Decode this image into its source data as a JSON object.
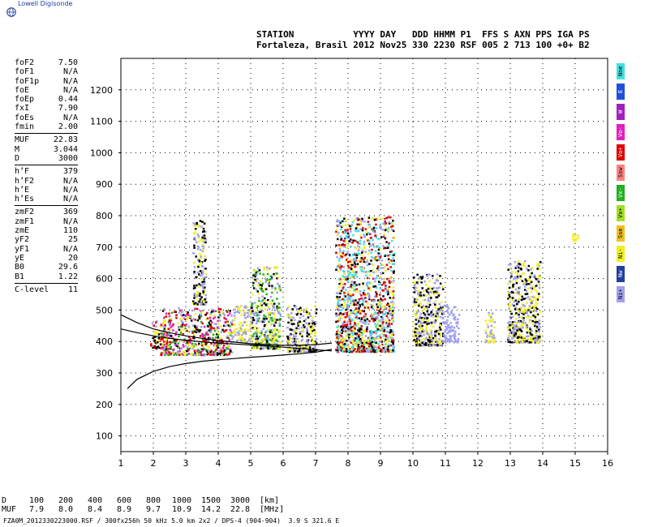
{
  "app": {
    "brand": "Lowell Digisonde",
    "brand_color": "#1f3f9f",
    "logo_icon": "globe-icon"
  },
  "header": {
    "line1": "STATION           YYYY DAY   DDD HHMM P1  FFS S AXN PPS IGA PS",
    "line2": "Fortaleza, Brasil 2012 Nov25 330 2230 RSF 005 2 713 100 +0+ B2"
  },
  "parameters": [
    {
      "label": "foF2",
      "value": "7.50"
    },
    {
      "label": "foF1",
      "value": "N/A"
    },
    {
      "label": "foF1p",
      "value": "N/A"
    },
    {
      "label": "foE",
      "value": "N/A"
    },
    {
      "label": "foEp",
      "value": "0.44"
    },
    {
      "label": "fxI",
      "value": "7.90"
    },
    {
      "label": "foEs",
      "value": "N/A"
    },
    {
      "label": "fmin",
      "value": "2.00"
    },
    {
      "sep": true
    },
    {
      "label": "MUF",
      "value": "22.83"
    },
    {
      "label": "M",
      "value": "3.044"
    },
    {
      "label": "D",
      "value": "3000"
    },
    {
      "sep": true
    },
    {
      "label": "h’F",
      "value": "379"
    },
    {
      "label": "h’F2",
      "value": "N/A"
    },
    {
      "label": "h’E",
      "value": "N/A"
    },
    {
      "label": "h’Es",
      "value": "N/A"
    },
    {
      "sep": true
    },
    {
      "label": "zmF2",
      "value": "369"
    },
    {
      "label": "zmF1",
      "value": "N/A"
    },
    {
      "label": "zmE",
      "value": "110"
    },
    {
      "label": "yF2",
      "value": "25"
    },
    {
      "label": "yF1",
      "value": "N/A"
    },
    {
      "label": "yE",
      "value": "20"
    },
    {
      "label": "B0",
      "value": "29.6"
    },
    {
      "label": "B1",
      "value": "1.22"
    },
    {
      "sep": true
    },
    {
      "label": "C-level",
      "value": "11"
    }
  ],
  "muf_table": {
    "d_label": "D",
    "muf_label": "MUF",
    "d_values": [
      "100",
      "200",
      "400",
      "600",
      "800",
      "1000",
      "1500",
      "3000"
    ],
    "muf_values": [
      "7.9",
      "8.0",
      "8.4",
      "8.9",
      "9.7",
      "10.9",
      "14.2",
      "22.8"
    ],
    "d_unit": "[km]",
    "muf_unit": "[MHz]"
  },
  "footer": "FZA0M_2012330223000.RSF / 300fx256h 50 kHz 5.0 km 2x2 / DPS-4 (904-904)  3.9 S 321.6 E",
  "legend": [
    {
      "label": "Nne",
      "color": "#40e0e0"
    },
    {
      "label": "E",
      "color": "#2050e0"
    },
    {
      "label": "W",
      "color": "#a020c0"
    },
    {
      "label": "Vo-",
      "color": "#e020c0"
    },
    {
      "label": "Vo+",
      "color": "#e00000"
    },
    {
      "label": "Ssw",
      "color": "#ff8080"
    },
    {
      "label": "Vx-",
      "color": "#20b020"
    },
    {
      "label": "Vx+",
      "color": "#a0e020"
    },
    {
      "label": "Sse",
      "color": "#f0c020"
    },
    {
      "label": "Ni-",
      "color": "#f0f020"
    },
    {
      "label": "Nw",
      "color": "#2040a0"
    },
    {
      "label": "Ni+",
      "color": "#a0a0f0"
    }
  ],
  "chart_data": {
    "type": "scatter",
    "xlim": [
      1,
      16
    ],
    "ylim": [
      50,
      1300
    ],
    "xticks": [
      "1",
      "2",
      "3",
      "4",
      "5",
      "6",
      "7",
      "8",
      "9",
      "10",
      "11",
      "12",
      "13",
      "14",
      "15",
      "16"
    ],
    "yticks": [
      "100",
      "200",
      "300",
      "400",
      "500",
      "600",
      "700",
      "800",
      "900",
      "1000",
      "1100",
      "1200"
    ],
    "grid": true,
    "traces": [
      {
        "name": "",
        "color": "#000000",
        "x": [
          1.2,
          1.5,
          2.0,
          2.5,
          3.0,
          3.5,
          4.0,
          4.5,
          5.0,
          5.5,
          6.0,
          6.5,
          7.0,
          7.5
        ],
        "y": [
          250,
          280,
          305,
          320,
          330,
          337,
          342,
          346,
          350,
          353,
          357,
          361,
          366,
          375
        ]
      },
      {
        "name": "",
        "color": "#000000",
        "x": [
          1.0,
          1.5,
          2.0,
          2.5,
          3.0,
          3.5,
          4.0,
          4.5,
          5.0,
          5.5,
          6.0,
          6.5,
          7.0,
          7.5
        ],
        "y": [
          485,
          460,
          440,
          428,
          418,
          410,
          403,
          398,
          393,
          390,
          388,
          388,
          390,
          395
        ]
      },
      {
        "name": "",
        "color": "#000000",
        "x": [
          1.0,
          1.5,
          2.0,
          2.5,
          3.0,
          3.5,
          4.0,
          4.5,
          5.0,
          5.5,
          6.0,
          6.5,
          7.0,
          7.5
        ],
        "y": [
          440,
          428,
          418,
          410,
          404,
          399,
          395,
          392,
          389,
          386,
          382,
          378,
          374,
          370
        ]
      }
    ],
    "echo_regions": [
      {
        "f": [
          1.9,
          2.4
        ],
        "h": [
          380,
          470
        ],
        "colors": [
          "#a0a0f0",
          "#f0f020",
          "#e00000",
          "#000000"
        ]
      },
      {
        "f": [
          2.2,
          4.4
        ],
        "h": [
          360,
          510
        ],
        "colors": [
          "#f0f020",
          "#e00000",
          "#e020c0",
          "#000000",
          "#a0a0f0",
          "#20b020"
        ]
      },
      {
        "f": [
          3.2,
          3.6
        ],
        "h": [
          520,
          790
        ],
        "colors": [
          "#f0f020",
          "#000000",
          "#a0a0f0"
        ]
      },
      {
        "f": [
          4.4,
          5.0
        ],
        "h": [
          400,
          520
        ],
        "colors": [
          "#f0f020",
          "#a0a0f0"
        ]
      },
      {
        "f": [
          5.0,
          5.9
        ],
        "h": [
          380,
          640
        ],
        "colors": [
          "#f0f020",
          "#000000",
          "#20b020",
          "#a0a0f0"
        ]
      },
      {
        "f": [
          6.1,
          7.0
        ],
        "h": [
          370,
          520
        ],
        "colors": [
          "#f0f020",
          "#a0a0f0",
          "#000000"
        ]
      },
      {
        "f": [
          7.6,
          9.4
        ],
        "h": [
          370,
          800
        ],
        "colors": [
          "#f0f020",
          "#a0a0f0",
          "#000000",
          "#e00000",
          "#40e0e0"
        ]
      },
      {
        "f": [
          10.0,
          10.9
        ],
        "h": [
          390,
          620
        ],
        "colors": [
          "#f0f020",
          "#a0a0f0",
          "#000000"
        ]
      },
      {
        "f": [
          10.9,
          11.4
        ],
        "h": [
          400,
          520
        ],
        "colors": [
          "#a0a0f0"
        ]
      },
      {
        "f": [
          12.2,
          12.5
        ],
        "h": [
          400,
          500
        ],
        "colors": [
          "#a0a0f0",
          "#f0f020"
        ]
      },
      {
        "f": [
          12.9,
          13.9
        ],
        "h": [
          400,
          660
        ],
        "colors": [
          "#f0f020",
          "#a0a0f0",
          "#000000"
        ]
      },
      {
        "f": [
          14.9,
          15.1
        ],
        "h": [
          720,
          760
        ],
        "colors": [
          "#f0f020"
        ]
      }
    ]
  }
}
